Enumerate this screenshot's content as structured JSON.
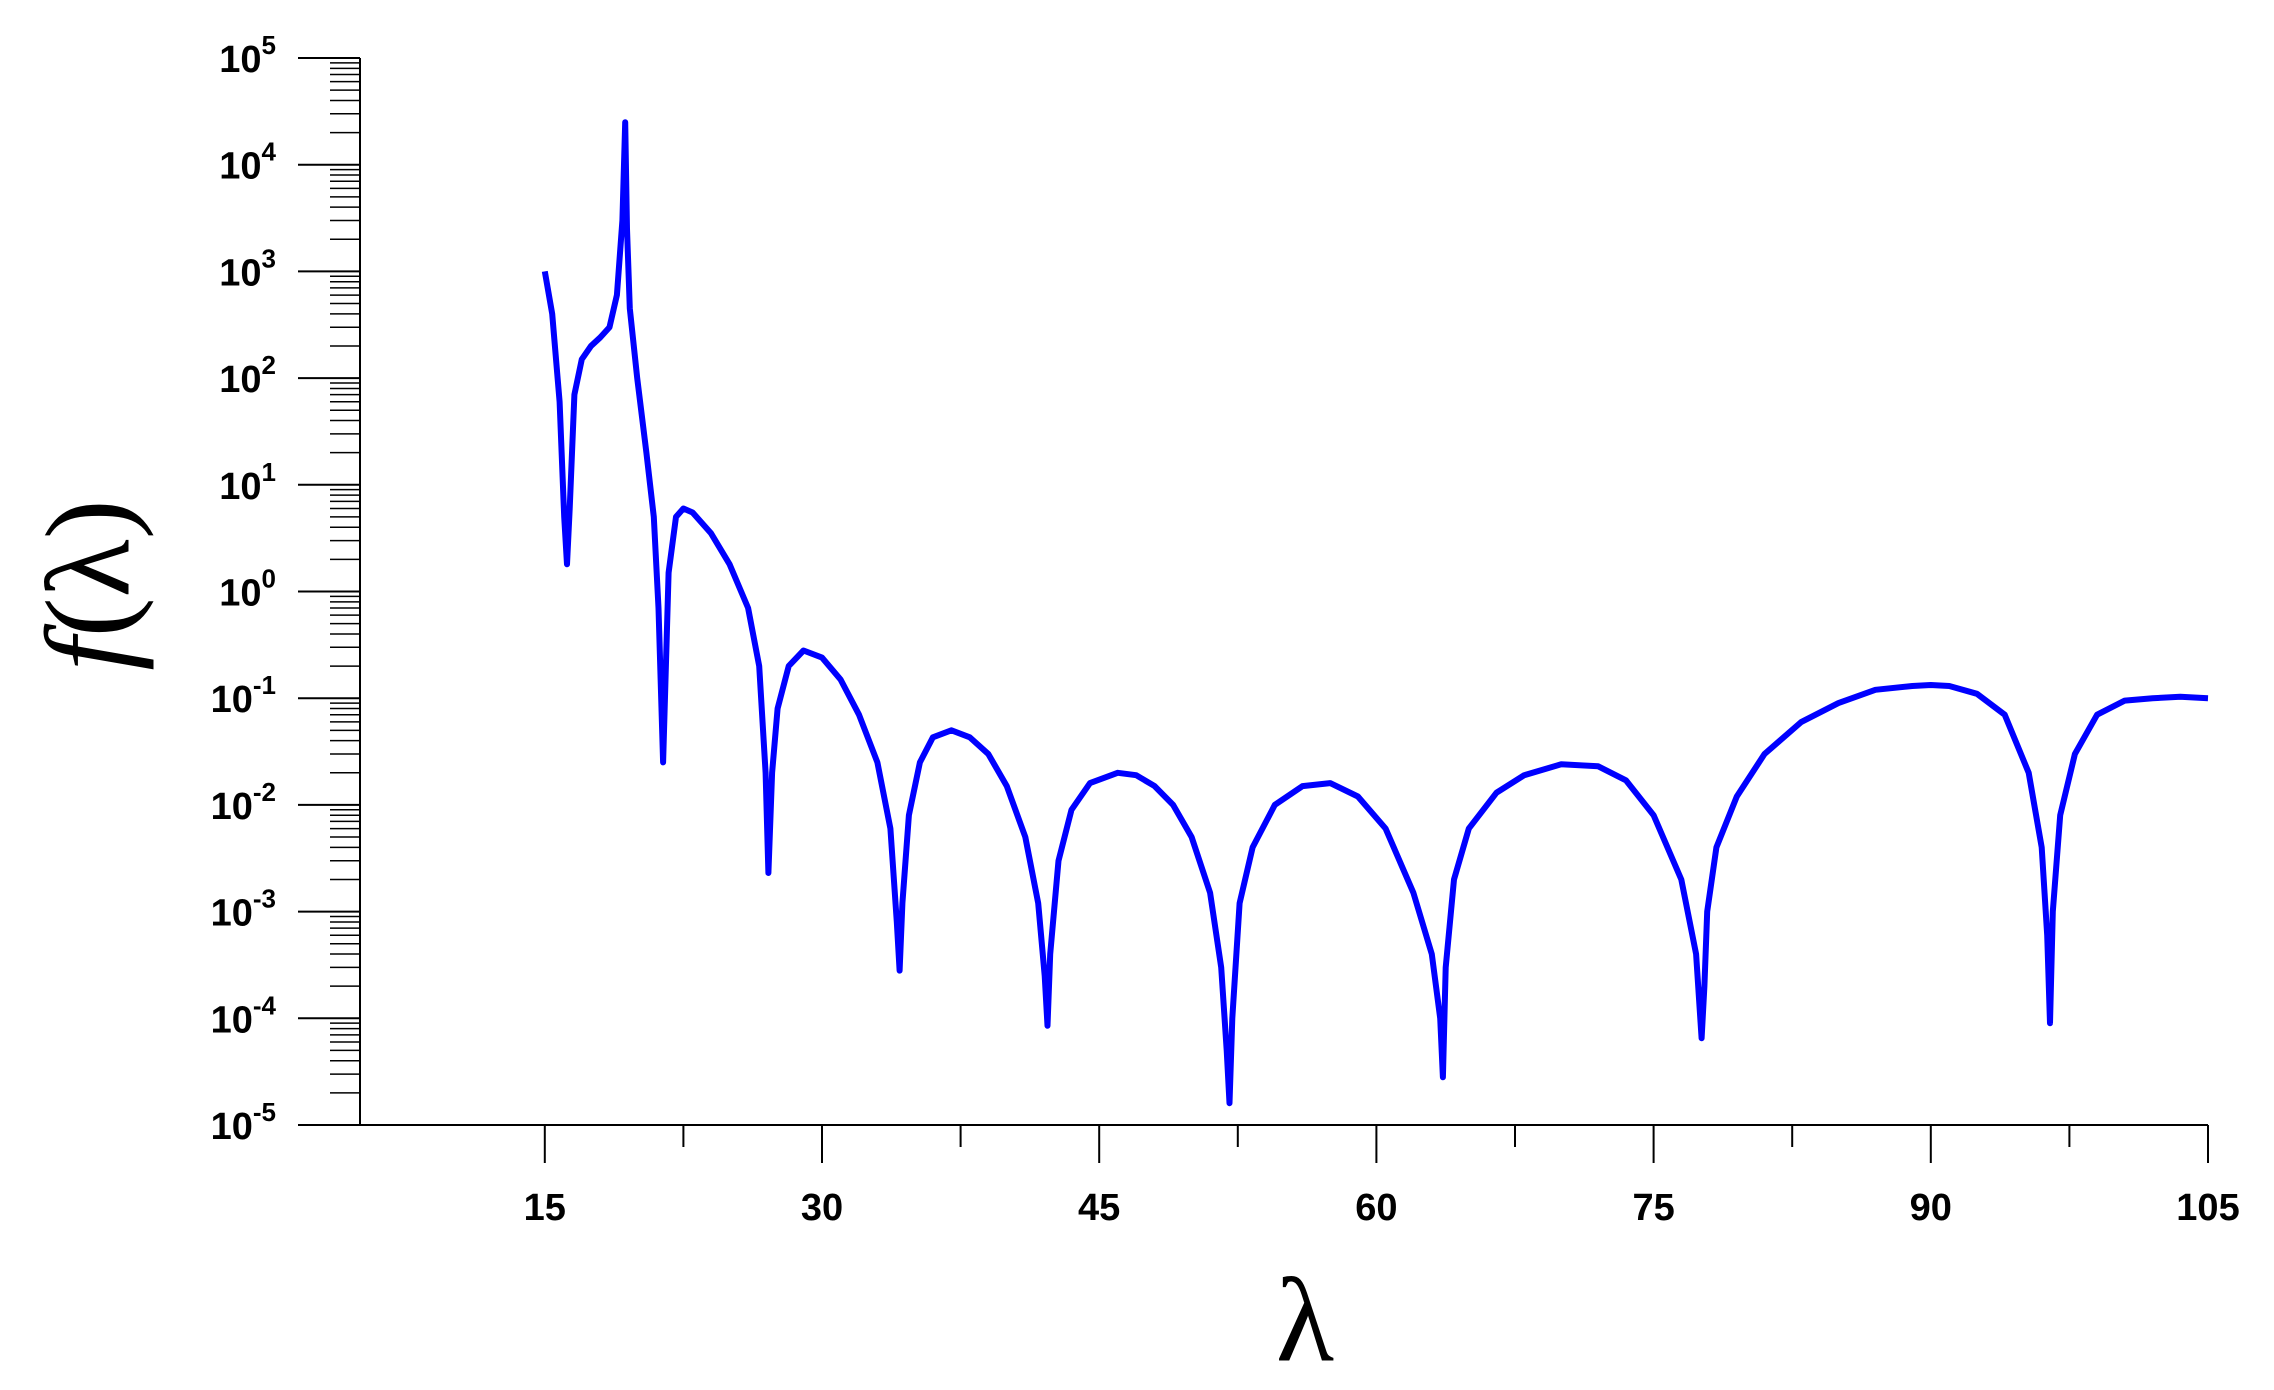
{
  "chart_data": {
    "type": "line",
    "xlabel": "λ",
    "ylabel_func": "f",
    "ylabel_open": "(",
    "ylabel_var": "λ",
    "ylabel_close": ")",
    "xlim": [
      5,
      105
    ],
    "ylim": [
      1e-05,
      100000
    ],
    "yscale": "log",
    "grid": false,
    "line_color": "#0000ff",
    "x_ticks": [
      {
        "value": 15,
        "label": "15"
      },
      {
        "value": 30,
        "label": "30"
      },
      {
        "value": 45,
        "label": "45"
      },
      {
        "value": 60,
        "label": "60"
      },
      {
        "value": 75,
        "label": "75"
      },
      {
        "value": 90,
        "label": "90"
      },
      {
        "value": 105,
        "label": "105"
      }
    ],
    "y_ticks": [
      {
        "value": 100000,
        "base": "10",
        "exp": "5"
      },
      {
        "value": 10000,
        "base": "10",
        "exp": "4"
      },
      {
        "value": 1000,
        "base": "10",
        "exp": "3"
      },
      {
        "value": 100,
        "base": "10",
        "exp": "2"
      },
      {
        "value": 10,
        "base": "10",
        "exp": "1"
      },
      {
        "value": 1,
        "base": "10",
        "exp": "0"
      },
      {
        "value": 0.1,
        "base": "10",
        "exp": "-1"
      },
      {
        "value": 0.01,
        "base": "10",
        "exp": "-2"
      },
      {
        "value": 0.001,
        "base": "10",
        "exp": "-3"
      },
      {
        "value": 0.0001,
        "base": "10",
        "exp": "-4"
      },
      {
        "value": 1e-05,
        "base": "10",
        "exp": "-5"
      }
    ],
    "series": [
      {
        "x": [
          15.0,
          15.4,
          15.8,
          16.05,
          16.2,
          16.35,
          16.6,
          17.0,
          17.5,
          18.0,
          18.5,
          18.9,
          19.2,
          19.35,
          19.45,
          19.6,
          20.0,
          20.5,
          20.9,
          21.15,
          21.4,
          21.7,
          22.1,
          22.5,
          23.0,
          24.0,
          25.0,
          26.0,
          26.6,
          26.95,
          27.1,
          27.3,
          27.6,
          28.2,
          29.0,
          30.0,
          31.0,
          32.0,
          33.0,
          33.7,
          34.05,
          34.2,
          34.35,
          34.7,
          35.3,
          36.0,
          37.0,
          38.0,
          39.0,
          40.0,
          41.0,
          41.7,
          42.05,
          42.2,
          42.35,
          42.8,
          43.5,
          44.5,
          46.0,
          47.0,
          48.0,
          49.0,
          50.0,
          51.0,
          51.6,
          51.9,
          52.05,
          52.2,
          52.6,
          53.3,
          54.5,
          56.0,
          57.5,
          59.0,
          60.5,
          62.0,
          63.0,
          63.45,
          63.6,
          63.75,
          64.2,
          65.0,
          66.5,
          68.0,
          70.0,
          72.0,
          73.5,
          75.0,
          76.5,
          77.3,
          77.6,
          77.75,
          77.9,
          78.4,
          79.5,
          81.0,
          83.0,
          85.0,
          87.0,
          89.0,
          90.0,
          91.0,
          92.5,
          94.0,
          95.3,
          96.0,
          96.3,
          96.45,
          96.6,
          97.0,
          97.8,
          99.0,
          100.5,
          102.0,
          103.5,
          105.0
        ],
        "y": [
          1000,
          400,
          60,
          5,
          1.8,
          6,
          70,
          150,
          200,
          240,
          300,
          600,
          3000,
          25000,
          2500,
          450,
          100,
          20,
          5,
          0.7,
          0.025,
          1.5,
          5,
          6,
          5.5,
          3.5,
          1.8,
          0.7,
          0.2,
          0.02,
          0.0023,
          0.02,
          0.08,
          0.2,
          0.28,
          0.24,
          0.15,
          0.07,
          0.025,
          0.006,
          0.0008,
          0.00028,
          0.0012,
          0.008,
          0.025,
          0.043,
          0.05,
          0.043,
          0.03,
          0.015,
          0.005,
          0.0012,
          0.00025,
          8.5e-05,
          0.0004,
          0.003,
          0.009,
          0.016,
          0.02,
          0.019,
          0.015,
          0.01,
          0.005,
          0.0015,
          0.0003,
          5e-05,
          1.6e-05,
          0.0001,
          0.0012,
          0.004,
          0.01,
          0.015,
          0.016,
          0.012,
          0.006,
          0.0015,
          0.0004,
          0.0001,
          2.8e-05,
          0.0003,
          0.002,
          0.006,
          0.013,
          0.019,
          0.024,
          0.023,
          0.017,
          0.008,
          0.002,
          0.0004,
          6.5e-05,
          0.0002,
          0.001,
          0.004,
          0.012,
          0.03,
          0.06,
          0.09,
          0.12,
          0.13,
          0.133,
          0.13,
          0.11,
          0.07,
          0.02,
          0.004,
          0.0006,
          9e-05,
          0.001,
          0.008,
          0.03,
          0.07,
          0.095,
          0.1,
          0.103,
          0.1
        ]
      }
    ]
  }
}
